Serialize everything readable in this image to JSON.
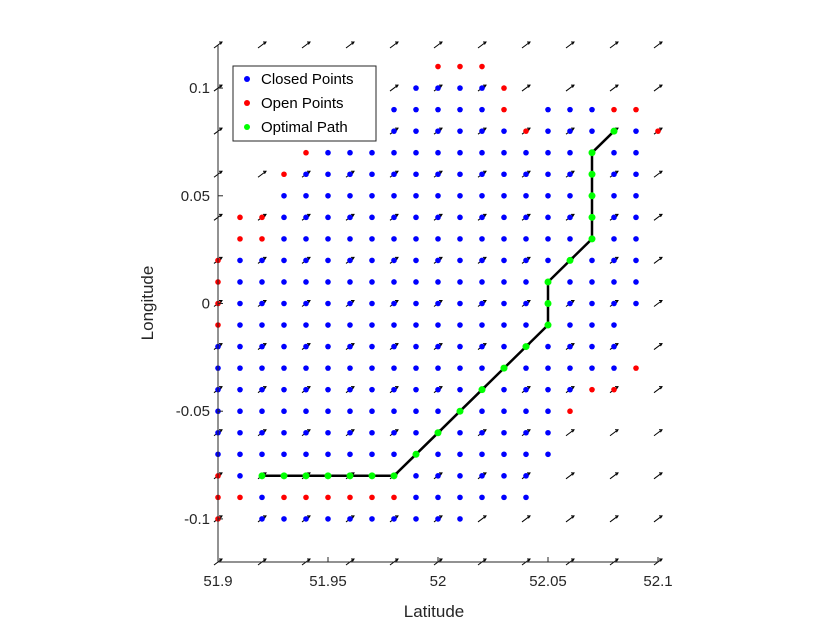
{
  "chart_data": {
    "type": "scatter",
    "xlabel": "Latitude",
    "ylabel": "Longitude",
    "xlim": [
      51.9,
      52.1
    ],
    "ylim": [
      -0.12,
      0.12
    ],
    "xticks": [
      51.9,
      51.95,
      52,
      52.05,
      52.1
    ],
    "xtick_labels": [
      "51.9",
      "51.95",
      "52",
      "52.05",
      "52.1"
    ],
    "yticks": [
      -0.1,
      -0.05,
      0,
      0.05,
      0.1
    ],
    "ytick_labels": [
      "-0.1",
      "-0.05",
      "0",
      "0.05",
      "0.1"
    ],
    "grid": false,
    "legend_position": "top-left",
    "grid_step": 0.01,
    "legend": [
      {
        "name": "Closed Points",
        "color": "#0000ff"
      },
      {
        "name": "Open Points",
        "color": "#ff0000"
      },
      {
        "name": "Optimal Path",
        "color": "#00ff00"
      }
    ],
    "path_line_color": "#000000",
    "field": {
      "description": "uniform wind field arrows on grid",
      "x_start": 51.9,
      "x_end": 52.1,
      "y_start": -0.12,
      "y_end": 0.12,
      "step": 0.02,
      "direction": "north-east",
      "color": "#000000"
    },
    "open_points": [
      [
        51.93,
        0.05
      ],
      [
        51.93,
        0.04
      ],
      [
        51.93,
        0.03
      ],
      [
        51.93,
        0.02
      ],
      [
        51.93,
        0.01
      ],
      [
        51.93,
        0
      ],
      [
        51.93,
        -0.01
      ],
      [
        51.93,
        -0.02
      ],
      [
        51.93,
        -0.03
      ],
      [
        51.93,
        -0.04
      ],
      [
        51.93,
        -0.05
      ],
      [
        51.93,
        -0.06
      ],
      [
        51.93,
        -0.07
      ],
      [
        51.93,
        -0.1
      ],
      [
        51.94,
        0.06
      ],
      [
        51.94,
        0.05
      ],
      [
        51.94,
        0.04
      ],
      [
        51.94,
        0.03
      ],
      [
        51.94,
        0.02
      ],
      [
        51.94,
        0.01
      ],
      [
        51.94,
        0
      ],
      [
        51.94,
        -0.01
      ],
      [
        51.94,
        -0.02
      ],
      [
        51.94,
        -0.03
      ],
      [
        51.94,
        -0.04
      ],
      [
        51.94,
        -0.05
      ],
      [
        51.94,
        -0.06
      ],
      [
        51.94,
        -0.07
      ],
      [
        51.94,
        -0.1
      ],
      [
        51.95,
        0.07
      ],
      [
        51.95,
        0.06
      ],
      [
        51.95,
        0.05
      ],
      [
        51.95,
        0.04
      ],
      [
        51.95,
        0.03
      ],
      [
        51.95,
        0.02
      ],
      [
        51.95,
        0.01
      ],
      [
        51.95,
        0
      ],
      [
        51.95,
        -0.01
      ],
      [
        51.95,
        -0.02
      ],
      [
        51.95,
        -0.03
      ],
      [
        51.95,
        -0.04
      ],
      [
        51.95,
        -0.05
      ],
      [
        51.95,
        -0.06
      ],
      [
        51.95,
        -0.07
      ],
      [
        51.95,
        -0.1
      ],
      [
        51.96,
        0.07
      ],
      [
        51.96,
        0.06
      ],
      [
        51.96,
        0.05
      ],
      [
        51.96,
        0.04
      ],
      [
        51.96,
        0.03
      ],
      [
        51.96,
        0.02
      ],
      [
        51.96,
        0.01
      ],
      [
        51.96,
        0
      ],
      [
        51.96,
        -0.01
      ],
      [
        51.96,
        -0.02
      ],
      [
        51.96,
        -0.03
      ],
      [
        51.96,
        -0.04
      ],
      [
        51.96,
        -0.05
      ],
      [
        51.96,
        -0.06
      ],
      [
        51.96,
        -0.07
      ],
      [
        51.96,
        -0.1
      ],
      [
        51.97,
        0.08
      ],
      [
        51.97,
        0.07
      ],
      [
        51.97,
        0.06
      ],
      [
        51.97,
        0.05
      ],
      [
        51.97,
        0.04
      ],
      [
        51.97,
        0.03
      ],
      [
        51.97,
        0.02
      ],
      [
        51.97,
        0.01
      ],
      [
        51.97,
        0
      ],
      [
        51.97,
        -0.01
      ],
      [
        51.97,
        -0.02
      ],
      [
        51.97,
        -0.03
      ],
      [
        51.97,
        -0.04
      ],
      [
        51.97,
        -0.05
      ],
      [
        51.97,
        -0.06
      ],
      [
        51.97,
        -0.07
      ],
      [
        51.97,
        -0.1
      ],
      [
        51.98,
        0.09
      ],
      [
        51.98,
        0.08
      ],
      [
        51.98,
        0.07
      ],
      [
        51.98,
        0.06
      ],
      [
        51.98,
        0.05
      ],
      [
        51.98,
        0.04
      ],
      [
        51.98,
        0.03
      ],
      [
        51.98,
        0.02
      ],
      [
        51.98,
        0.01
      ],
      [
        51.98,
        0
      ],
      [
        51.98,
        -0.01
      ],
      [
        51.98,
        -0.02
      ],
      [
        51.98,
        -0.03
      ],
      [
        51.98,
        -0.04
      ],
      [
        51.98,
        -0.05
      ],
      [
        51.98,
        -0.06
      ],
      [
        51.98,
        -0.07
      ],
      [
        51.98,
        -0.1
      ],
      [
        51.99,
        0.1
      ],
      [
        51.99,
        0.09
      ],
      [
        51.99,
        0.08
      ],
      [
        51.99,
        0.07
      ],
      [
        51.99,
        0.06
      ],
      [
        51.99,
        0.05
      ],
      [
        51.99,
        0.04
      ],
      [
        51.99,
        0.03
      ],
      [
        51.99,
        0.02
      ],
      [
        51.99,
        0.01
      ],
      [
        51.99,
        0
      ],
      [
        51.99,
        -0.01
      ],
      [
        51.99,
        -0.02
      ],
      [
        51.99,
        -0.03
      ],
      [
        51.99,
        -0.04
      ],
      [
        51.99,
        -0.05
      ],
      [
        51.99,
        -0.06
      ],
      [
        51.99,
        -0.08
      ],
      [
        51.99,
        -0.09
      ],
      [
        51.99,
        -0.1
      ],
      [
        52.0,
        0.1
      ],
      [
        52.0,
        0.09
      ],
      [
        52.0,
        0.08
      ],
      [
        52.0,
        0.07
      ],
      [
        52.0,
        0.06
      ],
      [
        52.0,
        0.05
      ],
      [
        52.0,
        0.04
      ],
      [
        52.0,
        0.03
      ],
      [
        52.0,
        0.02
      ],
      [
        52.0,
        0.01
      ],
      [
        52.0,
        0
      ],
      [
        52.0,
        -0.01
      ],
      [
        52.0,
        -0.02
      ],
      [
        52.0,
        -0.03
      ],
      [
        52.0,
        -0.04
      ],
      [
        52.0,
        -0.05
      ],
      [
        52.0,
        -0.07
      ],
      [
        52.0,
        -0.08
      ],
      [
        52.0,
        -0.09
      ],
      [
        52.0,
        -0.1
      ],
      [
        52.01,
        0.1
      ],
      [
        52.01,
        0.09
      ],
      [
        52.01,
        0.08
      ],
      [
        52.01,
        0.07
      ],
      [
        52.01,
        0.06
      ],
      [
        52.01,
        0.05
      ],
      [
        52.01,
        0.04
      ],
      [
        52.01,
        0.03
      ],
      [
        52.01,
        0.02
      ],
      [
        52.01,
        0.01
      ],
      [
        52.01,
        0
      ],
      [
        52.01,
        -0.01
      ],
      [
        52.01,
        -0.02
      ],
      [
        52.01,
        -0.03
      ],
      [
        52.01,
        -0.04
      ],
      [
        52.01,
        -0.06
      ],
      [
        52.01,
        -0.07
      ],
      [
        52.01,
        -0.08
      ],
      [
        52.01,
        -0.09
      ],
      [
        52.01,
        -0.1
      ],
      [
        52.02,
        0.1
      ],
      [
        52.02,
        0.09
      ],
      [
        52.02,
        0.08
      ],
      [
        52.02,
        0.07
      ],
      [
        52.02,
        0.06
      ],
      [
        52.02,
        0.05
      ],
      [
        52.02,
        0.04
      ],
      [
        52.02,
        0.03
      ],
      [
        52.02,
        0.02
      ],
      [
        52.02,
        0.01
      ],
      [
        52.02,
        0
      ],
      [
        52.02,
        -0.01
      ],
      [
        52.02,
        -0.02
      ],
      [
        52.02,
        -0.03
      ],
      [
        52.02,
        -0.05
      ],
      [
        52.02,
        -0.06
      ],
      [
        52.02,
        -0.07
      ],
      [
        52.02,
        -0.08
      ],
      [
        52.02,
        -0.09
      ],
      [
        52.03,
        0.08
      ],
      [
        52.03,
        0.07
      ],
      [
        52.03,
        0.06
      ],
      [
        52.03,
        0.05
      ],
      [
        52.03,
        0.04
      ],
      [
        52.03,
        0.03
      ],
      [
        52.03,
        0.02
      ],
      [
        52.03,
        0.01
      ],
      [
        52.03,
        0
      ],
      [
        52.03,
        -0.01
      ],
      [
        52.03,
        -0.02
      ],
      [
        52.03,
        -0.04
      ],
      [
        52.03,
        -0.05
      ],
      [
        52.03,
        -0.06
      ],
      [
        52.03,
        -0.07
      ],
      [
        52.03,
        -0.08
      ],
      [
        52.03,
        -0.09
      ],
      [
        52.04,
        0.07
      ],
      [
        52.04,
        0.06
      ],
      [
        52.04,
        0.05
      ],
      [
        52.04,
        0.04
      ],
      [
        52.04,
        0.03
      ],
      [
        52.04,
        0.02
      ],
      [
        52.04,
        0.01
      ],
      [
        52.04,
        0
      ],
      [
        52.04,
        -0.01
      ],
      [
        52.04,
        -0.03
      ],
      [
        52.04,
        -0.04
      ],
      [
        52.04,
        -0.05
      ],
      [
        52.04,
        -0.06
      ],
      [
        52.04,
        -0.07
      ],
      [
        52.04,
        -0.08
      ],
      [
        52.04,
        -0.09
      ],
      [
        52.05,
        0.09
      ],
      [
        52.05,
        0.08
      ],
      [
        52.05,
        0.07
      ],
      [
        52.05,
        0.06
      ],
      [
        52.05,
        0.05
      ],
      [
        52.05,
        0.04
      ],
      [
        52.05,
        0.03
      ],
      [
        52.05,
        0.02
      ],
      [
        52.05,
        -0.02
      ],
      [
        52.05,
        -0.03
      ],
      [
        52.05,
        -0.04
      ],
      [
        52.05,
        -0.05
      ],
      [
        52.05,
        -0.06
      ],
      [
        52.05,
        -0.07
      ],
      [
        52.06,
        0.09
      ],
      [
        52.06,
        0.08
      ],
      [
        52.06,
        0.07
      ],
      [
        52.06,
        0.06
      ],
      [
        52.06,
        0.05
      ],
      [
        52.06,
        0.04
      ],
      [
        52.06,
        0.03
      ],
      [
        52.06,
        0.01
      ],
      [
        52.06,
        0
      ],
      [
        52.06,
        -0.01
      ],
      [
        52.06,
        -0.02
      ],
      [
        52.06,
        -0.03
      ],
      [
        52.06,
        -0.04
      ],
      [
        52.07,
        0.09
      ],
      [
        52.07,
        0.08
      ],
      [
        52.07,
        0.02
      ],
      [
        52.07,
        0.01
      ],
      [
        52.07,
        0
      ],
      [
        52.07,
        -0.01
      ],
      [
        52.07,
        -0.02
      ],
      [
        52.07,
        -0.03
      ],
      [
        52.08,
        0.07
      ],
      [
        52.08,
        0.06
      ],
      [
        52.08,
        0.05
      ],
      [
        52.08,
        0.04
      ],
      [
        52.08,
        0.03
      ],
      [
        52.08,
        0.02
      ],
      [
        52.08,
        0.01
      ],
      [
        52.08,
        0
      ],
      [
        52.08,
        -0.01
      ],
      [
        52.08,
        -0.02
      ],
      [
        52.08,
        -0.03
      ],
      [
        52.09,
        0.08
      ],
      [
        52.09,
        0.07
      ],
      [
        52.09,
        0.06
      ],
      [
        52.09,
        0.05
      ],
      [
        52.09,
        0.04
      ],
      [
        52.09,
        0.03
      ],
      [
        52.09,
        0.02
      ],
      [
        52.09,
        0.01
      ],
      [
        52.09,
        0
      ]
    ],
    "closed_points": [
      [
        51.9,
        -0.02
      ],
      [
        51.9,
        -0.03
      ],
      [
        51.9,
        -0.04
      ],
      [
        51.9,
        -0.05
      ],
      [
        51.9,
        -0.06
      ],
      [
        51.9,
        -0.07
      ],
      [
        51.91,
        0.02
      ],
      [
        51.91,
        0.01
      ],
      [
        51.91,
        0
      ],
      [
        51.91,
        -0.01
      ],
      [
        51.91,
        -0.02
      ],
      [
        51.91,
        -0.03
      ],
      [
        51.91,
        -0.04
      ],
      [
        51.91,
        -0.05
      ],
      [
        51.91,
        -0.06
      ],
      [
        51.91,
        -0.07
      ],
      [
        51.91,
        -0.08
      ],
      [
        51.92,
        0.02
      ],
      [
        51.92,
        0.01
      ],
      [
        51.92,
        0
      ],
      [
        51.92,
        -0.01
      ],
      [
        51.92,
        -0.02
      ],
      [
        51.92,
        -0.03
      ],
      [
        51.92,
        -0.04
      ],
      [
        51.92,
        -0.05
      ],
      [
        51.92,
        -0.06
      ],
      [
        51.92,
        -0.07
      ],
      [
        51.92,
        -0.09
      ],
      [
        51.92,
        -0.1
      ]
    ],
    "open_edge_points": [
      [
        51.9,
        0.02
      ],
      [
        51.9,
        0.01
      ],
      [
        51.9,
        0
      ],
      [
        51.9,
        -0.01
      ],
      [
        51.9,
        -0.08
      ],
      [
        51.9,
        -0.09
      ],
      [
        51.9,
        -0.1
      ],
      [
        51.91,
        0.04
      ],
      [
        51.91,
        0.03
      ],
      [
        51.91,
        -0.09
      ],
      [
        51.92,
        0.04
      ],
      [
        51.92,
        0.03
      ],
      [
        51.93,
        -0.09
      ],
      [
        51.94,
        -0.09
      ],
      [
        51.95,
        -0.09
      ],
      [
        51.96,
        -0.09
      ],
      [
        51.97,
        -0.09
      ],
      [
        51.98,
        -0.09
      ],
      [
        51.93,
        0.06
      ],
      [
        51.94,
        0.07
      ],
      [
        51.95,
        0.08
      ],
      [
        51.96,
        0.08
      ],
      [
        51.97,
        0.09
      ],
      [
        52.0,
        0.11
      ],
      [
        52.01,
        0.11
      ],
      [
        52.02,
        0.11
      ],
      [
        51.99,
        -0.07
      ],
      [
        52.03,
        0.1
      ],
      [
        52.03,
        0.09
      ],
      [
        52.04,
        0.08
      ],
      [
        52.06,
        0.02
      ],
      [
        52.07,
        0.07
      ],
      [
        52.08,
        0.09
      ],
      [
        52.06,
        -0.05
      ],
      [
        52.07,
        -0.04
      ],
      [
        52.08,
        -0.04
      ],
      [
        52.09,
        -0.03
      ],
      [
        52.09,
        0.09
      ],
      [
        52.1,
        0.08
      ]
    ],
    "optimal_path": [
      [
        51.92,
        -0.08
      ],
      [
        51.93,
        -0.08
      ],
      [
        51.94,
        -0.08
      ],
      [
        51.95,
        -0.08
      ],
      [
        51.96,
        -0.08
      ],
      [
        51.97,
        -0.08
      ],
      [
        51.98,
        -0.08
      ],
      [
        51.99,
        -0.07
      ],
      [
        52.0,
        -0.06
      ],
      [
        52.01,
        -0.05
      ],
      [
        52.02,
        -0.04
      ],
      [
        52.03,
        -0.03
      ],
      [
        52.04,
        -0.02
      ],
      [
        52.05,
        -0.01
      ],
      [
        52.05,
        0
      ],
      [
        52.05,
        0.01
      ],
      [
        52.06,
        0.02
      ],
      [
        52.07,
        0.03
      ],
      [
        52.07,
        0.04
      ],
      [
        52.07,
        0.05
      ],
      [
        52.07,
        0.06
      ],
      [
        52.07,
        0.07
      ],
      [
        52.08,
        0.08
      ]
    ]
  }
}
